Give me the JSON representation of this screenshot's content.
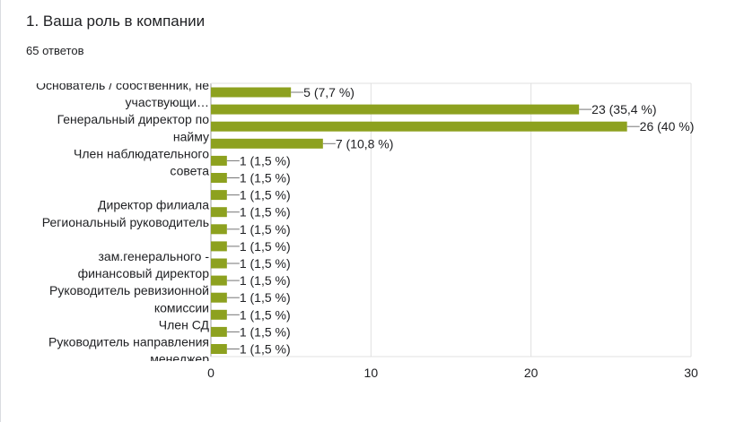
{
  "question": {
    "title": "1. Ваша роль в компании",
    "responses": "65 ответов"
  },
  "colors": {
    "bar": "#8da11f",
    "grid": "#e0e0e0",
    "text": "#202124"
  },
  "chart_data": {
    "type": "bar",
    "orientation": "horizontal",
    "xlim": [
      0,
      30
    ],
    "x_ticks": [
      "0",
      "10",
      "20",
      "30"
    ],
    "grid": true,
    "category_labels": [
      {
        "lines": [
          "Основатель / собственник, не",
          "участвующи…"
        ],
        "rows": [
          0,
          1
        ]
      },
      {
        "lines": [
          "Генеральный директор по",
          "найму"
        ],
        "rows": [
          2,
          3
        ]
      },
      {
        "lines": [
          "Член наблюдательного",
          "совета"
        ],
        "rows": [
          4,
          5
        ]
      },
      {
        "lines": [
          "Директор филиала"
        ],
        "rows": [
          7
        ]
      },
      {
        "lines": [
          "Региональный руководитель"
        ],
        "rows": [
          8
        ]
      },
      {
        "lines": [
          "зам.генерального -",
          "финансовый директор"
        ],
        "rows": [
          10,
          11
        ]
      },
      {
        "lines": [
          "Руководитель ревизионной",
          "комиссии"
        ],
        "rows": [
          12,
          13
        ]
      },
      {
        "lines": [
          "Член СД"
        ],
        "rows": [
          14
        ]
      },
      {
        "lines": [
          "Руководитель направления"
        ],
        "rows": [
          15
        ]
      },
      {
        "lines": [
          "менеджер"
        ],
        "rows": [
          16
        ]
      }
    ],
    "values": [
      5,
      23,
      26,
      7,
      1,
      1,
      1,
      1,
      1,
      1,
      1,
      1,
      1,
      1,
      1,
      1
    ],
    "data_labels": [
      "5 (7,7 %)",
      "23 (35,4 %)",
      "26 (40 %)",
      "7 (10,8 %)",
      "1 (1,5 %)",
      "1 (1,5 %)",
      "1 (1,5 %)",
      "1 (1,5 %)",
      "1 (1,5 %)",
      "1 (1,5 %)",
      "1 (1,5 %)",
      "1 (1,5 %)",
      "1 (1,5 %)",
      "1 (1,5 %)",
      "1 (1,5 %)",
      "1 (1,5 %)"
    ]
  }
}
